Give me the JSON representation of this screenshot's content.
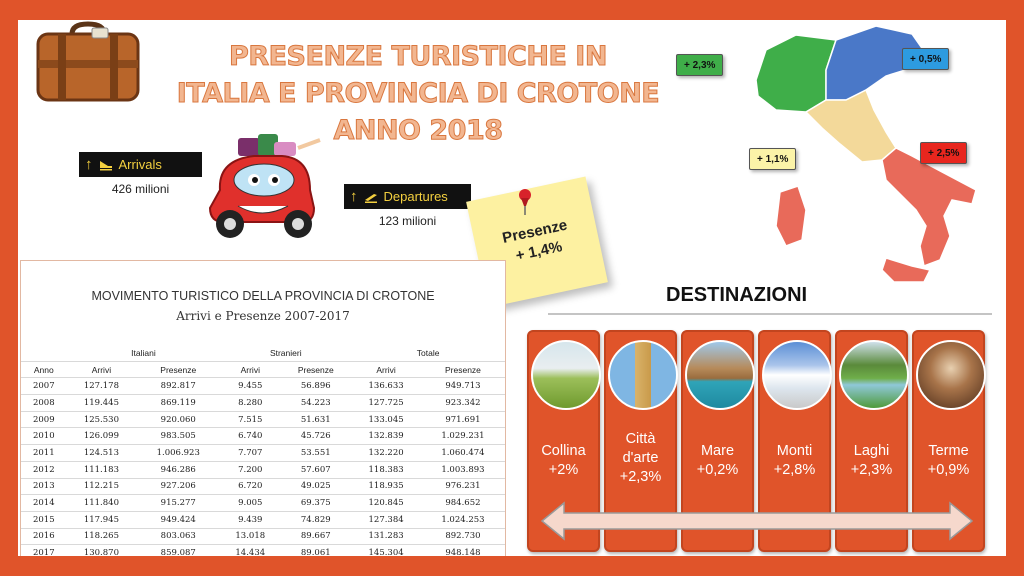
{
  "title": {
    "line1": "PRESENZE TURISTICHE IN",
    "line2": "ITALIA E PROVINCIA DI CROTONE",
    "line3": "ANNO 2018"
  },
  "arrivals": {
    "label": "Arrivals",
    "value": "426 milioni"
  },
  "departures": {
    "label": "Departures",
    "value": "123 milioni"
  },
  "note": {
    "line1": "Presenze",
    "line2": "+ 1,4%"
  },
  "map_labels": {
    "nw": "+ 2,3%",
    "ne": "+ 0,5%",
    "center": "+ 1,1%",
    "south": "+ 2,5%"
  },
  "table": {
    "title": "MOVIMENTO TURISTICO DELLA PROVINCIA DI CROTONE",
    "subtitle": "Arrivi e Presenze 2007-2017",
    "groups": [
      "Italiani",
      "Stranieri",
      "Totale"
    ],
    "columns": [
      "Anno",
      "Arrivi",
      "Presenze",
      "Arrivi",
      "Presenze",
      "Arrivi",
      "Presenze"
    ],
    "rows": [
      [
        "2007",
        "127.178",
        "892.817",
        "9.455",
        "56.896",
        "136.633",
        "949.713"
      ],
      [
        "2008",
        "119.445",
        "869.119",
        "8.280",
        "54.223",
        "127.725",
        "923.342"
      ],
      [
        "2009",
        "125.530",
        "920.060",
        "7.515",
        "51.631",
        "133.045",
        "971.691"
      ],
      [
        "2010",
        "126.099",
        "983.505",
        "6.740",
        "45.726",
        "132.839",
        "1.029.231"
      ],
      [
        "2011",
        "124.513",
        "1.006.923",
        "7.707",
        "53.551",
        "132.220",
        "1.060.474"
      ],
      [
        "2012",
        "111.183",
        "946.286",
        "7.200",
        "57.607",
        "118.383",
        "1.003.893"
      ],
      [
        "2013",
        "112.215",
        "927.206",
        "6.720",
        "49.025",
        "118.935",
        "976.231"
      ],
      [
        "2014",
        "111.840",
        "915.277",
        "9.005",
        "69.375",
        "120.845",
        "984.652"
      ],
      [
        "2015",
        "117.945",
        "949.424",
        "9.439",
        "74.829",
        "127.384",
        "1.024.253"
      ],
      [
        "2016",
        "118.265",
        "803.063",
        "13.018",
        "89.667",
        "131.283",
        "892.730"
      ],
      [
        "2017",
        "130.870",
        "859.087",
        "14.434",
        "89.061",
        "145.304",
        "948.148"
      ]
    ]
  },
  "destinations": {
    "title": "DESTINAZIONI",
    "items": [
      {
        "name": "Collina",
        "value": "+2%"
      },
      {
        "name": "Città d'arte",
        "value": "+2,3%"
      },
      {
        "name": "Mare",
        "value": "+0,2%"
      },
      {
        "name": "Monti",
        "value": "+2,8%"
      },
      {
        "name": "Laghi",
        "value": "+2,3%"
      },
      {
        "name": "Terme",
        "value": "+0,9%"
      }
    ]
  },
  "colors": {
    "frame": "#e0542a",
    "map_north": "#3fae49",
    "map_northeast": "#4a78c8",
    "map_center": "#f3d99a",
    "map_south": "#e86a5a",
    "note": "#fdf1a1"
  }
}
